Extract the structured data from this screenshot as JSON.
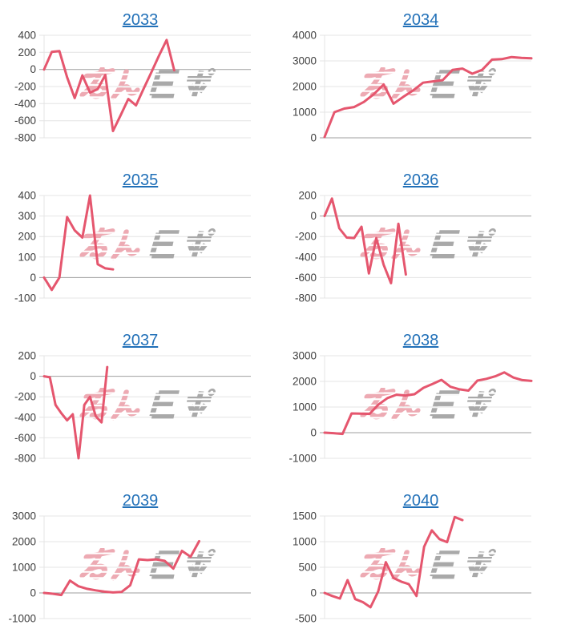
{
  "page": {
    "background_color": "#ffffff"
  },
  "style": {
    "line_color": "#e5566e",
    "grid_color": "#e4e4e4",
    "zero_line_color": "#9f9f9f",
    "tick_label_color": "#404040",
    "title_link_color": "#2170b8"
  },
  "watermark": {
    "text": "みんレポ",
    "pink_text": "みん",
    "gray_text": "レポ",
    "pink_color": "#edaab3",
    "gray_color": "#a9a9a9"
  },
  "chart_data": [
    {
      "type": "line",
      "title": "2033",
      "ylim": [
        -800,
        400
      ],
      "yticks": [
        400,
        200,
        0,
        -200,
        -400,
        -600,
        -800
      ],
      "grid": true,
      "x_count": 28,
      "values": [
        0,
        205,
        215,
        -90,
        -335,
        -70,
        -270,
        -230,
        -65,
        -720,
        -535,
        -345,
        -420,
        -225,
        -35,
        160,
        345,
        -10
      ]
    },
    {
      "type": "line",
      "title": "2034",
      "ylim": [
        0,
        4000
      ],
      "yticks": [
        4000,
        3000,
        2000,
        1000,
        0
      ],
      "grid": true,
      "x_count": 22,
      "values": [
        30,
        1000,
        1140,
        1200,
        1400,
        1700,
        2080,
        1330,
        1600,
        1850,
        2150,
        2200,
        2250,
        2650,
        2700,
        2500,
        2650,
        3050,
        3070,
        3150,
        3120,
        3100
      ]
    },
    {
      "type": "line",
      "title": "2035",
      "ylim": [
        -100,
        400
      ],
      "yticks": [
        400,
        300,
        200,
        100,
        0,
        -100
      ],
      "grid": true,
      "x_count": 28,
      "values": [
        0,
        -60,
        0,
        295,
        230,
        195,
        400,
        65,
        45,
        40
      ]
    },
    {
      "type": "line",
      "title": "2036",
      "ylim": [
        -800,
        200
      ],
      "yticks": [
        200,
        0,
        -200,
        -400,
        -600,
        -800
      ],
      "grid": true,
      "x_count": 29,
      "values": [
        0,
        170,
        -120,
        -210,
        -215,
        -105,
        -560,
        -215,
        -475,
        -655,
        -75,
        -570
      ]
    },
    {
      "type": "line",
      "title": "2037",
      "ylim": [
        -800,
        200
      ],
      "yticks": [
        200,
        0,
        -200,
        -400,
        -600,
        -800
      ],
      "grid": true,
      "x_count": 37,
      "values": [
        0,
        -10,
        -280,
        -360,
        -430,
        -370,
        -800,
        -280,
        -200,
        -390,
        -450,
        90
      ]
    },
    {
      "type": "line",
      "title": "2038",
      "ylim": [
        -1000,
        3000
      ],
      "yticks": [
        3000,
        2000,
        1000,
        0,
        -1000
      ],
      "grid": true,
      "x_count": 24,
      "values": [
        0,
        -20,
        -50,
        750,
        740,
        730,
        1100,
        1350,
        1480,
        1450,
        1500,
        1750,
        1900,
        2060,
        1790,
        1690,
        1640,
        2030,
        2100,
        2200,
        2350,
        2150,
        2050,
        2020
      ]
    },
    {
      "type": "line",
      "title": "2039",
      "ylim": [
        -1000,
        3000
      ],
      "yticks": [
        3000,
        2000,
        1000,
        0,
        -1000
      ],
      "grid": true,
      "x_count": 25,
      "values": [
        0,
        -30,
        -80,
        480,
        260,
        160,
        100,
        50,
        20,
        40,
        300,
        1310,
        1280,
        1310,
        1250,
        950,
        1640,
        1410,
        2020
      ]
    },
    {
      "type": "line",
      "title": "2040",
      "ylim": [
        -500,
        1500
      ],
      "yticks": [
        1500,
        1000,
        500,
        0,
        -500
      ],
      "grid": true,
      "x_count": 28,
      "values": [
        0,
        -60,
        -110,
        250,
        -120,
        -180,
        -280,
        30,
        600,
        290,
        220,
        170,
        -60,
        900,
        1220,
        1050,
        990,
        1480,
        1420
      ]
    }
  ]
}
